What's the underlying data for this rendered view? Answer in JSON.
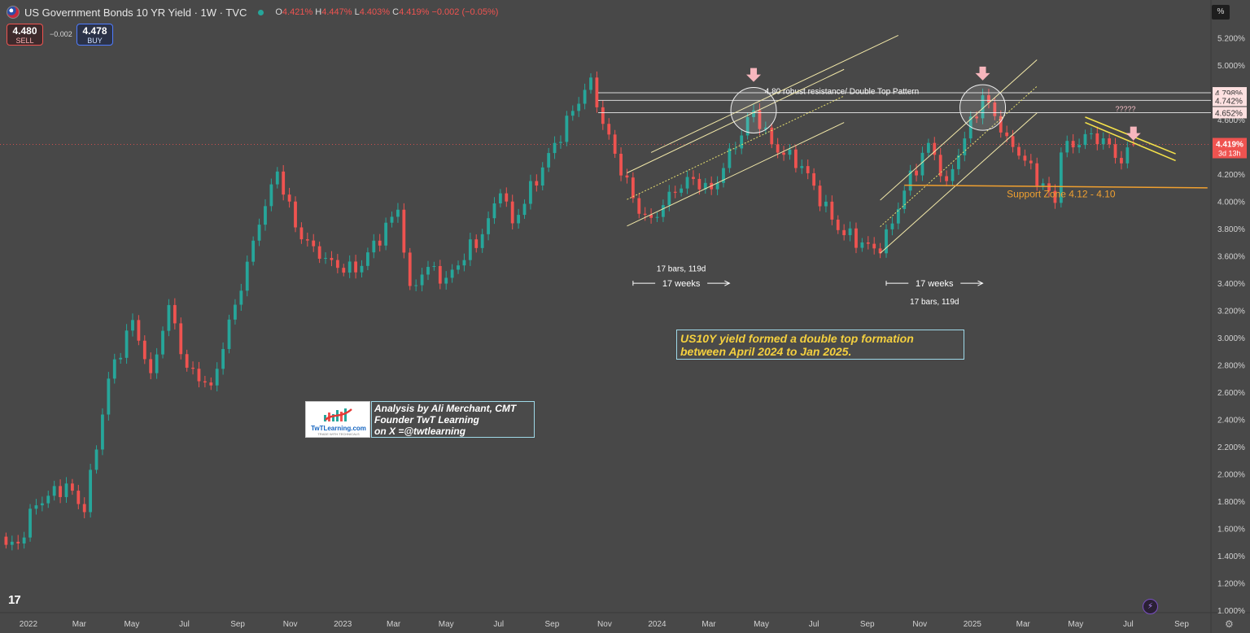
{
  "header": {
    "title": "US Government Bonds 10 YR Yield · 1W · TVC",
    "ohlc": {
      "O": "4.421%",
      "H": "4.447%",
      "L": "4.403%",
      "C": "4.419%",
      "change": "−0.002 (−0.05%)"
    }
  },
  "quote": {
    "sell_price": "4.480",
    "sell_label": "SELL",
    "spread": "−0.002",
    "buy_price": "4.478",
    "buy_label": "BUY"
  },
  "axis": {
    "scale_button": "%"
  },
  "annotations": {
    "callout_line1": "US10Y yield formed a double top formation",
    "callout_line2": "between April 2024 to Jan 2025.",
    "author_line1": "Analysis by Ali Merchant, CMT",
    "author_line2": "Founder TwT Learning",
    "author_line3": "on X =@twtlearning",
    "logo_text": "TwTLearning.com",
    "logo_subtext": "TRADE WITH TECHNICALS"
  },
  "tv_logo": "17",
  "chart_data": {
    "type": "candlestick",
    "title": "US Government Bonds 10 YR Yield · 1W · TVC",
    "interval": "1W",
    "ylim": [
      1.0,
      5.3
    ],
    "y_scale": "linear",
    "y_ticks": [
      "5.200%",
      "5.000%",
      "4.800%",
      "4.600%",
      "4.400%",
      "4.200%",
      "4.000%",
      "3.800%",
      "3.600%",
      "3.400%",
      "3.200%",
      "3.000%",
      "2.800%",
      "2.600%",
      "2.400%",
      "2.200%",
      "2.000%",
      "1.800%",
      "1.600%",
      "1.400%",
      "1.200%",
      "1.000%"
    ],
    "x_ticks": [
      {
        "date": "2022-01-01",
        "label": "2022"
      },
      {
        "date": "2022-03-01",
        "label": "Mar"
      },
      {
        "date": "2022-05-01",
        "label": "May"
      },
      {
        "date": "2022-07-01",
        "label": "Jul"
      },
      {
        "date": "2022-09-01",
        "label": "Sep"
      },
      {
        "date": "2022-11-01",
        "label": "Nov"
      },
      {
        "date": "2023-01-01",
        "label": "2023"
      },
      {
        "date": "2023-03-01",
        "label": "Mar"
      },
      {
        "date": "2023-05-01",
        "label": "May"
      },
      {
        "date": "2023-07-01",
        "label": "Jul"
      },
      {
        "date": "2023-09-01",
        "label": "Sep"
      },
      {
        "date": "2023-11-01",
        "label": "Nov"
      },
      {
        "date": "2024-01-01",
        "label": "2024"
      },
      {
        "date": "2024-03-01",
        "label": "Mar"
      },
      {
        "date": "2024-05-01",
        "label": "May"
      },
      {
        "date": "2024-07-01",
        "label": "Jul"
      },
      {
        "date": "2024-09-01",
        "label": "Sep"
      },
      {
        "date": "2024-11-01",
        "label": "Nov"
      },
      {
        "date": "2025-01-01",
        "label": "2025"
      },
      {
        "date": "2025-03-01",
        "label": "Mar"
      },
      {
        "date": "2025-05-01",
        "label": "May"
      },
      {
        "date": "2025-07-01",
        "label": "Jul"
      },
      {
        "date": "2025-09-01",
        "label": "Sep"
      }
    ],
    "x_range": [
      "2021-11-29",
      "2025-10-05"
    ],
    "anchors": [
      {
        "date": "2021-12-06",
        "close": 1.48
      },
      {
        "date": "2021-12-20",
        "close": 1.49
      },
      {
        "date": "2022-01-10",
        "close": 1.77
      },
      {
        "date": "2022-02-14",
        "close": 1.93
      },
      {
        "date": "2022-03-07",
        "close": 1.72
      },
      {
        "date": "2022-04-04",
        "close": 2.7
      },
      {
        "date": "2022-05-02",
        "close": 3.13
      },
      {
        "date": "2022-05-23",
        "close": 2.74
      },
      {
        "date": "2022-06-13",
        "close": 3.24
      },
      {
        "date": "2022-07-04",
        "close": 2.78
      },
      {
        "date": "2022-08-01",
        "close": 2.65
      },
      {
        "date": "2022-09-26",
        "close": 3.83
      },
      {
        "date": "2022-10-17",
        "close": 4.22
      },
      {
        "date": "2022-11-07",
        "close": 3.81
      },
      {
        "date": "2022-12-05",
        "close": 3.58
      },
      {
        "date": "2023-01-16",
        "close": 3.48
      },
      {
        "date": "2023-03-06",
        "close": 3.94
      },
      {
        "date": "2023-03-20",
        "close": 3.38
      },
      {
        "date": "2023-04-10",
        "close": 3.52
      },
      {
        "date": "2023-05-01",
        "close": 3.44
      },
      {
        "date": "2023-06-12",
        "close": 3.76
      },
      {
        "date": "2023-07-03",
        "close": 4.06
      },
      {
        "date": "2023-07-17",
        "close": 3.84
      },
      {
        "date": "2023-08-21",
        "close": 4.25
      },
      {
        "date": "2023-10-16",
        "close": 4.91
      },
      {
        "date": "2023-10-30",
        "close": 4.57
      },
      {
        "date": "2023-12-11",
        "close": 3.91
      },
      {
        "date": "2023-12-25",
        "close": 3.88
      },
      {
        "date": "2024-02-05",
        "close": 4.18
      },
      {
        "date": "2024-03-04",
        "close": 4.09
      },
      {
        "date": "2024-04-22",
        "close": 4.67
      },
      {
        "date": "2024-05-13",
        "close": 4.42
      },
      {
        "date": "2024-06-17",
        "close": 4.26
      },
      {
        "date": "2024-07-29",
        "close": 3.79
      },
      {
        "date": "2024-09-16",
        "close": 3.62
      },
      {
        "date": "2024-10-14",
        "close": 4.08
      },
      {
        "date": "2024-11-11",
        "close": 4.43
      },
      {
        "date": "2024-12-02",
        "close": 4.15
      },
      {
        "date": "2025-01-13",
        "close": 4.78
      },
      {
        "date": "2025-02-10",
        "close": 4.48
      },
      {
        "date": "2025-03-03",
        "close": 4.3
      },
      {
        "date": "2025-04-07",
        "close": 3.99
      },
      {
        "date": "2025-04-14",
        "close": 4.36
      },
      {
        "date": "2025-05-19",
        "close": 4.5
      },
      {
        "date": "2025-06-09",
        "close": 4.42
      },
      {
        "date": "2025-06-23",
        "close": 4.28
      },
      {
        "date": "2025-07-07",
        "close": 4.419
      }
    ],
    "last_price": {
      "value": 4.419,
      "label": "4.419%",
      "countdown": "3d 13h"
    },
    "horizontal_levels": [
      {
        "value": 4.798,
        "label": "4.798%"
      },
      {
        "value": 4.742,
        "label": "4.742%"
      },
      {
        "value": 4.652,
        "label": "4.652%"
      }
    ],
    "resistance_label": "4.80 robust resistance/ Double Top Pattern",
    "support": {
      "from": 4.1,
      "to": 4.12,
      "start": "2024-10-14",
      "end": "2025-10-01",
      "label": "Support Zone 4.12 - 4.10"
    },
    "channels": [
      {
        "start": "2023-11-27",
        "end": "2024-08-05",
        "lower": [
          3.82,
          4.58
        ],
        "upper": [
          4.21,
          4.97
        ],
        "mid_start": 4.01
      },
      {
        "start": "2024-09-16",
        "end": "2025-03-17",
        "lower": [
          3.62,
          4.65
        ],
        "upper": [
          4.01,
          5.04
        ]
      }
    ],
    "outer_channel_line": {
      "start": "2023-12-25",
      "end": "2024-10-07",
      "y": [
        4.36,
        5.22
      ]
    },
    "falling_wedge": [
      {
        "start": "2025-05-12",
        "end": "2025-08-25",
        "y": [
          4.62,
          4.35
        ]
      },
      {
        "start": "2025-05-12",
        "end": "2025-08-25",
        "y": [
          4.58,
          4.3
        ]
      }
    ],
    "top_circles": [
      {
        "date": "2024-04-22",
        "value": 4.67
      },
      {
        "date": "2025-01-13",
        "value": 4.69
      }
    ],
    "arrows": [
      {
        "date": "2024-04-22",
        "value": 4.98
      },
      {
        "date": "2025-01-13",
        "value": 4.99
      },
      {
        "date": "2025-07-07",
        "value": 4.55
      }
    ],
    "question_label": "?????",
    "question_date": "2025-06-16",
    "question_value": 4.66,
    "measures": [
      {
        "from": "2023-12-04",
        "to": "2024-03-25",
        "value": 3.4,
        "label": "17 weeks",
        "bars_label": "17 bars, 119d",
        "bars_value": 3.51
      },
      {
        "from": "2024-09-23",
        "to": "2025-01-13",
        "value": 3.4,
        "label": "17 weeks",
        "bars_label": "17 bars, 119d",
        "bars_value": 3.27
      }
    ],
    "colors": {
      "up": "#26a69a",
      "down": "#ef5350",
      "background": "#484848",
      "resistance": "#f0f0f0",
      "support": "#f0a030",
      "channel": "#f2e8a8",
      "wedge": "#f5e24a",
      "arrow": "#f7b6bd"
    }
  }
}
